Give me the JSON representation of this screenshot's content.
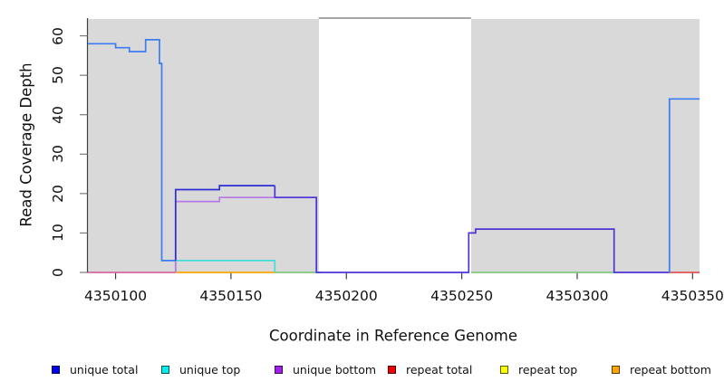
{
  "chart_data": {
    "type": "line",
    "subtype": "step-coverage-plot",
    "title": "",
    "xlabel": "Coordinate in Reference Genome",
    "ylabel": "Read Coverage Depth",
    "xlim": [
      4350088,
      4350353
    ],
    "ylim": [
      0,
      64.5
    ],
    "xticks": [
      4350100,
      4350150,
      4350200,
      4350250,
      4350300,
      4350350
    ],
    "yticks": [
      0,
      10,
      20,
      30,
      40,
      50,
      60
    ],
    "grid": "off",
    "legend_position": "bottom",
    "shading": {
      "color": "#d9d9d9",
      "regions": [
        [
          4350088,
          4350188
        ],
        [
          4350254,
          4350353
        ]
      ],
      "gap_region": [
        4350188,
        4350254
      ],
      "gap_top_border_color": "#8a8a8a"
    },
    "legend": [
      {
        "label": "unique total",
        "color": "#0000ee"
      },
      {
        "label": "unique top",
        "color": "#00eeee"
      },
      {
        "label": "unique bottom",
        "color": "#a020f0"
      },
      {
        "label": "repeat total",
        "color": "#ee0000"
      },
      {
        "label": "repeat top",
        "color": "#ffff00"
      },
      {
        "label": "repeat bottom",
        "color": "#ffa500"
      }
    ],
    "series": [
      {
        "name": "unique total",
        "steps": [
          [
            4350088,
            58
          ],
          [
            4350100,
            57
          ],
          [
            4350106,
            56
          ],
          [
            4350113,
            59
          ],
          [
            4350119,
            53
          ],
          [
            4350120,
            3
          ],
          [
            4350126,
            21
          ],
          [
            4350145,
            22
          ],
          [
            4350169,
            19
          ],
          [
            4350187,
            0
          ],
          [
            4350253,
            10
          ],
          [
            4350256,
            11
          ],
          [
            4350316,
            0
          ],
          [
            4350340,
            44
          ]
        ],
        "end": 4350353
      },
      {
        "name": "unique top",
        "steps": [
          [
            4350088,
            0
          ],
          [
            4350126,
            3
          ],
          [
            4350169,
            0
          ]
        ],
        "end": 4350353
      },
      {
        "name": "unique bottom",
        "steps": [
          [
            4350088,
            0
          ],
          [
            4350126,
            18
          ],
          [
            4350145,
            19
          ],
          [
            4350187,
            0
          ],
          [
            4350254,
            11
          ],
          [
            4350316,
            0
          ]
        ],
        "end": 4350353
      },
      {
        "name": "repeat total",
        "steps": [
          [
            4350088,
            0
          ]
        ],
        "end": 4350353
      },
      {
        "name": "repeat top",
        "steps": [
          [
            4350088,
            0
          ]
        ],
        "end": 4350353
      },
      {
        "name": "repeat bottom",
        "steps": [
          [
            4350088,
            0
          ]
        ],
        "end": 4350353
      }
    ],
    "visible_segments": [
      {
        "name": "baseline-pink",
        "color": "#d4679f",
        "points": [
          [
            4350088,
            0
          ],
          [
            4350126,
            0
          ]
        ]
      },
      {
        "name": "baseline-orange",
        "color": "#ffa500",
        "points": [
          [
            4350126,
            0
          ],
          [
            4350169,
            0
          ]
        ]
      },
      {
        "name": "baseline-green-1",
        "color": "#7ec87e",
        "points": [
          [
            4350169,
            0
          ],
          [
            4350189,
            0
          ]
        ]
      },
      {
        "name": "baseline-green-2",
        "color": "#7ec87e",
        "points": [
          [
            4350254,
            0
          ],
          [
            4350316,
            0
          ]
        ]
      },
      {
        "name": "baseline-red",
        "color": "#e05555",
        "points": [
          [
            4350340,
            0
          ],
          [
            4350353,
            0
          ]
        ]
      },
      {
        "name": "unique-top-cyan",
        "color": "#45dcdc",
        "points": [
          [
            4350126,
            0
          ],
          [
            4350126,
            3
          ],
          [
            4350169,
            3
          ],
          [
            4350169,
            0
          ]
        ]
      },
      {
        "name": "unique-bottom-purple",
        "color": "#b878e6",
        "points": [
          [
            4350126,
            0
          ],
          [
            4350126,
            18
          ],
          [
            4350145,
            18
          ],
          [
            4350145,
            19
          ],
          [
            4350187,
            19
          ],
          [
            4350187,
            0
          ]
        ]
      },
      {
        "name": "total-left",
        "color": "#3b7df1",
        "points": [
          [
            4350088,
            58
          ],
          [
            4350100,
            58
          ],
          [
            4350100,
            57
          ],
          [
            4350106,
            57
          ],
          [
            4350106,
            56
          ],
          [
            4350113,
            56
          ],
          [
            4350113,
            59
          ],
          [
            4350119,
            59
          ],
          [
            4350119,
            53
          ],
          [
            4350120,
            53
          ],
          [
            4350120,
            3
          ],
          [
            4350126,
            3
          ]
        ]
      },
      {
        "name": "total-mid",
        "color": "#2e2ed6",
        "points": [
          [
            4350126,
            3
          ],
          [
            4350126,
            21
          ],
          [
            4350145,
            21
          ],
          [
            4350145,
            22
          ],
          [
            4350169,
            22
          ]
        ]
      },
      {
        "name": "total-overlap",
        "color": "#4b35d9",
        "points": [
          [
            4350169,
            22
          ],
          [
            4350169,
            19
          ],
          [
            4350187,
            19
          ],
          [
            4350187,
            0
          ],
          [
            4350253,
            0
          ],
          [
            4350253,
            10
          ],
          [
            4350256,
            10
          ],
          [
            4350256,
            11
          ],
          [
            4350316,
            11
          ],
          [
            4350316,
            0
          ],
          [
            4350340,
            0
          ]
        ]
      },
      {
        "name": "total-right",
        "color": "#3b7df1",
        "points": [
          [
            4350340,
            0
          ],
          [
            4350340,
            44
          ],
          [
            4350353,
            44
          ]
        ]
      }
    ]
  }
}
